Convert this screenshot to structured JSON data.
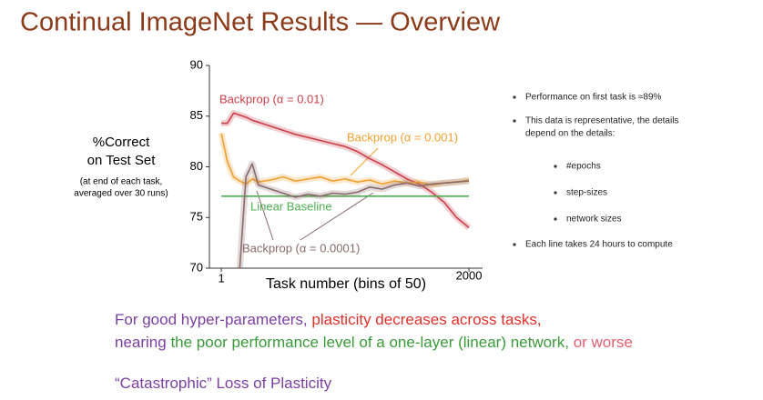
{
  "slide_title": "Continual ImageNet Results — Overview",
  "y_label_lines": [
    "%Correct",
    "on Test Set"
  ],
  "y_note_lines": [
    "(at end of each task,",
    "averaged over 30 runs)"
  ],
  "chart_data": {
    "type": "line",
    "xlabel": "Task number (bins of 50)",
    "x": [
      1,
      50,
      100,
      150,
      200,
      250,
      300,
      400,
      500,
      600,
      700,
      800,
      900,
      1000,
      1100,
      1200,
      1300,
      1400,
      1500,
      1600,
      1700,
      1800,
      1900,
      2000
    ],
    "xlim": [
      -95,
      2110
    ],
    "xticks": [
      1,
      2000
    ],
    "ylim": [
      70,
      90
    ],
    "yticks": [
      70,
      75,
      80,
      85,
      90
    ],
    "series": [
      {
        "name": "Backprop (α = 0.01)",
        "color": "#c8404a",
        "values": [
          84.3,
          84.3,
          85.3,
          85.1,
          84.9,
          84.6,
          84.4,
          84.0,
          83.6,
          83.2,
          82.9,
          82.6,
          82.3,
          82.0,
          81.5,
          80.8,
          80.2,
          79.5,
          78.8,
          78.3,
          77.5,
          76.5,
          75.0,
          74.0
        ]
      },
      {
        "name": "Backprop (α = 0.001)",
        "color": "#f0a030",
        "values": [
          83.3,
          80.5,
          79.0,
          78.6,
          78.3,
          78.8,
          78.5,
          78.7,
          79.0,
          78.6,
          78.8,
          79.0,
          78.6,
          78.8,
          78.5,
          78.7,
          78.3,
          78.6,
          78.4,
          78.5,
          78.2,
          78.4,
          78.5,
          78.7
        ]
      },
      {
        "name": "Linear Baseline",
        "color": "#4caf50",
        "values": [
          77.1,
          77.1,
          77.1,
          77.1,
          77.1,
          77.1,
          77.1,
          77.1,
          77.1,
          77.1,
          77.1,
          77.1,
          77.1,
          77.1,
          77.1,
          77.1,
          77.1,
          77.1,
          77.1,
          77.1,
          77.1,
          77.1,
          77.1,
          77.1
        ]
      },
      {
        "name": "Backprop (α = 0.0001)",
        "color": "#8a6a6a",
        "values": [
          null,
          null,
          null,
          70.0,
          79.0,
          80.3,
          78.2,
          77.8,
          77.4,
          77.0,
          77.3,
          77.1,
          77.4,
          77.3,
          77.5,
          78.0,
          77.8,
          78.2,
          78.4,
          78.1,
          78.3,
          78.4,
          78.5,
          78.6
        ]
      }
    ]
  },
  "bullets": [
    {
      "lines": [
        "Performance on first task is ≈89%"
      ],
      "level": 1
    },
    {
      "lines": [
        "This data is representative, the details",
        "depend on the details:"
      ],
      "level": 1
    },
    {
      "lines": [
        "#epochs"
      ],
      "level": 2
    },
    {
      "lines": [
        "step-sizes"
      ],
      "level": 2
    },
    {
      "lines": [
        "network sizes"
      ],
      "level": 2
    },
    {
      "lines": [
        "Each line takes 24 hours to compute"
      ],
      "level": 1
    }
  ],
  "footer": [
    [
      {
        "text": "For good hyper-parameters,",
        "color": "#7b3fa0"
      },
      {
        "text": "plasticity decreases across tasks,",
        "color": "#e0302a"
      }
    ],
    [
      {
        "text": "nearing",
        "color": "#7b3fa0"
      },
      {
        "text": "the poor performance level of a one-layer (linear) network,",
        "color": "#3a9a3a"
      },
      {
        "text": "or worse",
        "color": "#e06070"
      }
    ],
    [
      {
        "text": "“Catastrophic” Loss of Plasticity",
        "color": "#7b3fa0"
      }
    ]
  ]
}
